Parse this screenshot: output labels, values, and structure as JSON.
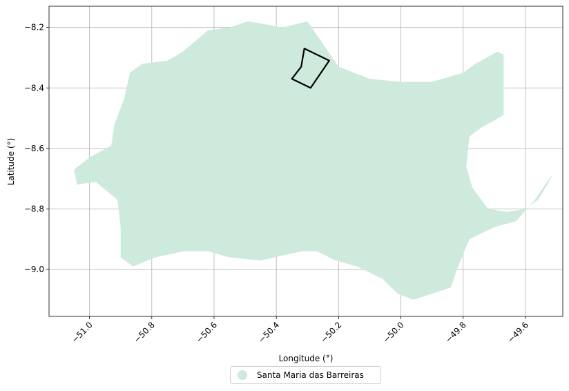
{
  "chart_data": {
    "type": "map",
    "xlabel": "Longitude (°)",
    "ylabel": "Latitude (°)",
    "xlim": [
      -51.13,
      -49.48
    ],
    "ylim": [
      -9.155,
      -8.13
    ],
    "xticks": [
      -51.0,
      -50.8,
      -50.6,
      -50.4,
      -50.2,
      -50.0,
      -49.8,
      -49.6
    ],
    "yticks": [
      -8.2,
      -8.4,
      -8.6,
      -8.8,
      -9.0
    ],
    "xtick_labels": [
      "−51.0",
      "−50.8",
      "−50.6",
      "−50.4",
      "−50.2",
      "−50.0",
      "−49.8",
      "−49.6"
    ],
    "ytick_labels": [
      "−8.2",
      "−8.4",
      "−8.6",
      "−8.8",
      "−9.0"
    ],
    "grid": true,
    "legend_position": "bottom-center",
    "series": [
      {
        "name": "Santa Maria das Barreiras",
        "color": "#cdeadc"
      }
    ],
    "municipality_boundary": [
      [
        -51.05,
        -8.67
      ],
      [
        -51.0,
        -8.63
      ],
      [
        -50.93,
        -8.59
      ],
      [
        -50.92,
        -8.52
      ],
      [
        -50.89,
        -8.44
      ],
      [
        -50.87,
        -8.35
      ],
      [
        -50.83,
        -8.32
      ],
      [
        -50.75,
        -8.31
      ],
      [
        -50.7,
        -8.28
      ],
      [
        -50.62,
        -8.21
      ],
      [
        -50.55,
        -8.2
      ],
      [
        -50.49,
        -8.18
      ],
      [
        -50.38,
        -8.2
      ],
      [
        -50.3,
        -8.18
      ],
      [
        -50.26,
        -8.24
      ],
      [
        -50.2,
        -8.33
      ],
      [
        -50.1,
        -8.37
      ],
      [
        -50.0,
        -8.38
      ],
      [
        -49.9,
        -8.38
      ],
      [
        -49.8,
        -8.35
      ],
      [
        -49.76,
        -8.32
      ],
      [
        -49.69,
        -8.28
      ],
      [
        -49.67,
        -8.29
      ],
      [
        -49.67,
        -8.49
      ],
      [
        -49.74,
        -8.53
      ],
      [
        -49.78,
        -8.56
      ],
      [
        -49.79,
        -8.66
      ],
      [
        -49.77,
        -8.73
      ],
      [
        -49.72,
        -8.8
      ],
      [
        -49.66,
        -8.81
      ],
      [
        -49.6,
        -8.8
      ],
      [
        -49.56,
        -8.77
      ],
      [
        -49.53,
        -8.72
      ],
      [
        -49.51,
        -8.68
      ],
      [
        -49.57,
        -8.77
      ],
      [
        -49.63,
        -8.84
      ],
      [
        -49.7,
        -8.86
      ],
      [
        -49.78,
        -8.9
      ],
      [
        -49.82,
        -9.0
      ],
      [
        -49.84,
        -9.06
      ],
      [
        -49.9,
        -9.08
      ],
      [
        -49.96,
        -9.1
      ],
      [
        -50.01,
        -9.08
      ],
      [
        -50.06,
        -9.03
      ],
      [
        -50.14,
        -8.99
      ],
      [
        -50.21,
        -8.97
      ],
      [
        -50.27,
        -8.94
      ],
      [
        -50.32,
        -8.94
      ],
      [
        -50.45,
        -8.97
      ],
      [
        -50.55,
        -8.96
      ],
      [
        -50.62,
        -8.94
      ],
      [
        -50.7,
        -8.94
      ],
      [
        -50.79,
        -8.96
      ],
      [
        -50.86,
        -8.99
      ],
      [
        -50.9,
        -8.96
      ],
      [
        -50.9,
        -8.86
      ],
      [
        -50.91,
        -8.77
      ],
      [
        -50.98,
        -8.71
      ],
      [
        -51.04,
        -8.72
      ],
      [
        -51.05,
        -8.67
      ]
    ],
    "highlight_boundary": [
      [
        -50.31,
        -8.27
      ],
      [
        -50.23,
        -8.31
      ],
      [
        -50.29,
        -8.4
      ],
      [
        -50.35,
        -8.37
      ],
      [
        -50.32,
        -8.33
      ],
      [
        -50.31,
        -8.27
      ]
    ]
  }
}
